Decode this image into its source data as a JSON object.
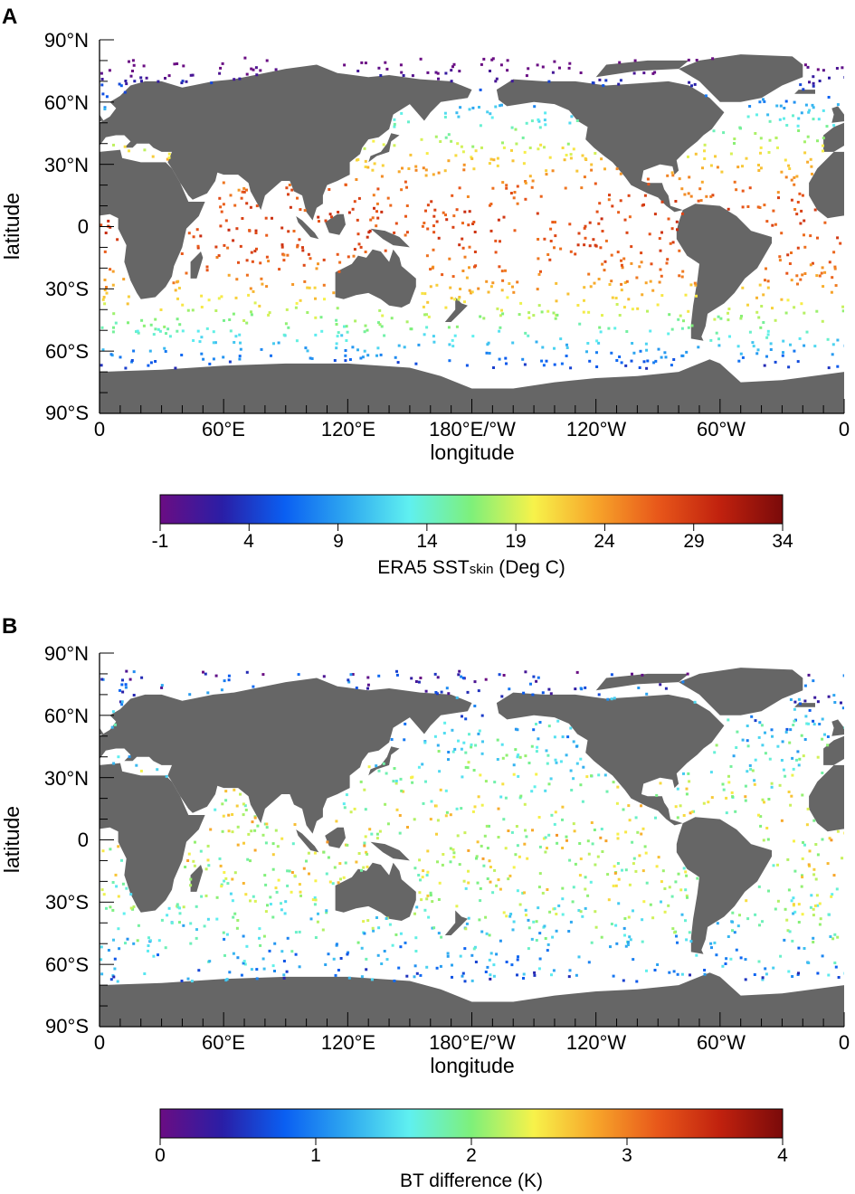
{
  "panels": [
    {
      "letter": "A",
      "xlabel": "longitude",
      "ylabel": "latitude",
      "x_ticks": [
        "0",
        "60°E",
        "120°E",
        "180°E/°W",
        "120°W",
        "60°W",
        "0"
      ],
      "y_ticks": [
        "90°N",
        "60°N",
        "30°N",
        "0",
        "30°S",
        "60°S",
        "90°S"
      ],
      "colorbar": {
        "ticks": [
          "-1",
          "4",
          "9",
          "14",
          "19",
          "24",
          "29",
          "34"
        ],
        "title_main": "ERA5 SST",
        "title_sub": "skin",
        "title_tail": " (Deg C)",
        "range": [
          -1,
          34
        ]
      }
    },
    {
      "letter": "B",
      "xlabel": "longitude",
      "ylabel": "latitude",
      "x_ticks": [
        "0",
        "60°E",
        "120°E",
        "180°E/°W",
        "120°W",
        "60°W",
        "0"
      ],
      "y_ticks": [
        "90°N",
        "60°N",
        "30°N",
        "0",
        "30°S",
        "60°S",
        "90°S"
      ],
      "colorbar": {
        "ticks": [
          "0",
          "1",
          "2",
          "3",
          "4"
        ],
        "title_main": "BT difference (K)",
        "title_sub": "",
        "title_tail": "",
        "range": [
          0,
          4
        ]
      }
    }
  ],
  "colors": {
    "land": "#666666",
    "ocean": "#ffffff",
    "colormap": [
      "#6a0d83",
      "#2a1ea6",
      "#0a5ff2",
      "#2ea8f0",
      "#5ff0f0",
      "#7ef07a",
      "#f7f24a",
      "#f7a52a",
      "#e8571a",
      "#c0210e",
      "#7a0a0a"
    ]
  }
}
